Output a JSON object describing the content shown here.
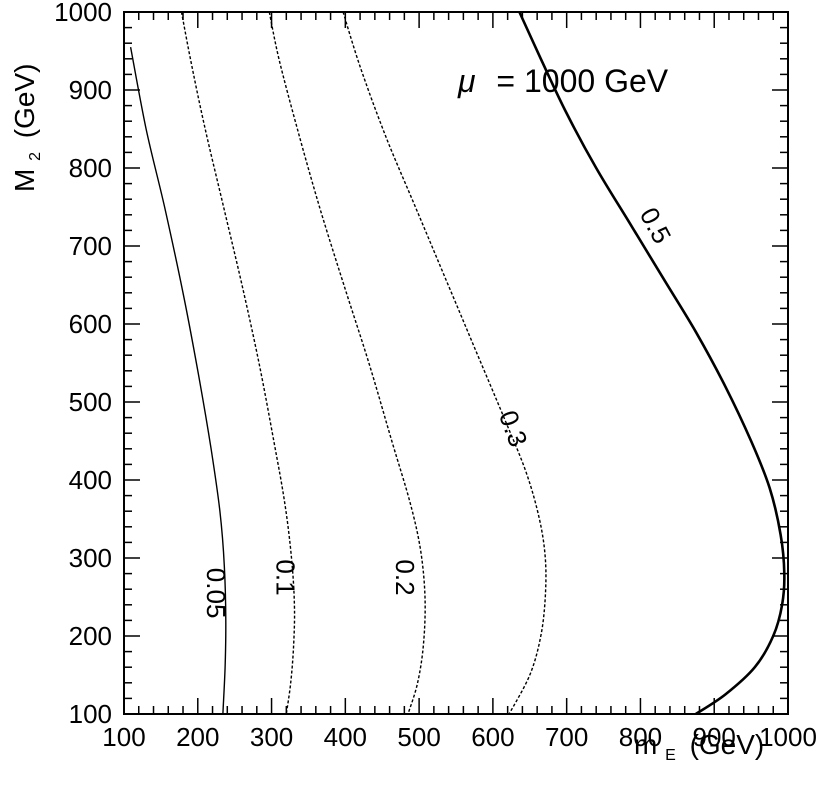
{
  "chart_data": {
    "type": "line",
    "title": "",
    "xlabel_main": "m",
    "xlabel_sub": "E",
    "xlabel_unit": "(GeV)",
    "ylabel_main": "M",
    "ylabel_sub": "2",
    "ylabel_unit": "(GeV)",
    "annotation_symbol": "μ",
    "annotation_text": "= 1000 GeV",
    "xlim": [
      100,
      1000
    ],
    "ylim": [
      100,
      1000
    ],
    "xticks": [
      "100",
      "200",
      "300",
      "400",
      "500",
      "600",
      "700",
      "800",
      "900",
      "1000"
    ],
    "yticks": [
      "100",
      "200",
      "300",
      "400",
      "500",
      "600",
      "700",
      "800",
      "900",
      "1000"
    ],
    "xtick_values": [
      100,
      200,
      300,
      400,
      500,
      600,
      700,
      800,
      900,
      1000
    ],
    "ytick_values": [
      100,
      200,
      300,
      400,
      500,
      600,
      700,
      800,
      900,
      1000
    ],
    "series": [
      {
        "label": "0.05",
        "style": "solid-thin",
        "x": [
          109,
          130,
          155,
          180,
          200,
          218,
          230,
          236,
          238,
          237,
          234
        ],
        "y": [
          955,
          850,
          750,
          640,
          540,
          440,
          360,
          290,
          220,
          160,
          100
        ],
        "label_x": 222,
        "label_y": 255,
        "label_rotation": 90
      },
      {
        "label": "0.1",
        "style": "dashed",
        "x": [
          178,
          190,
          210,
          235,
          260,
          283,
          303,
          318,
          327,
          331,
          330,
          326,
          320
        ],
        "y": [
          1000,
          940,
          850,
          750,
          650,
          550,
          450,
          370,
          300,
          240,
          190,
          140,
          100
        ],
        "label_x": 316,
        "label_y": 275,
        "label_rotation": 90
      },
      {
        "label": "0.2",
        "style": "dashed",
        "x": [
          297,
          310,
          335,
          365,
          398,
          432,
          463,
          488,
          502,
          508,
          506,
          498,
          485
        ],
        "y": [
          1000,
          940,
          850,
          750,
          650,
          550,
          450,
          370,
          310,
          250,
          190,
          140,
          100
        ],
        "label_x": 478,
        "label_y": 275,
        "label_rotation": 90
      },
      {
        "label": "0.3",
        "style": "dashed",
        "x": [
          397,
          420,
          455,
          495,
          535,
          575,
          615,
          645,
          663,
          671,
          671,
          665,
          650,
          622
        ],
        "y": [
          1000,
          930,
          840,
          750,
          660,
          570,
          480,
          410,
          350,
          300,
          250,
          200,
          150,
          100
        ],
        "label_x": 625,
        "label_y": 465,
        "label_rotation": 70
      },
      {
        "label": "0.5",
        "style": "solid-thick",
        "x": [
          636,
          665,
          700,
          740,
          785,
          830,
          875,
          915,
          950,
          975,
          990,
          995,
          992,
          980,
          955,
          915,
          875
        ],
        "y": [
          1000,
          940,
          870,
          800,
          730,
          660,
          590,
          520,
          450,
          390,
          330,
          280,
          240,
          200,
          160,
          125,
          100
        ],
        "label_x": 818,
        "label_y": 725,
        "label_rotation": 62
      }
    ]
  }
}
